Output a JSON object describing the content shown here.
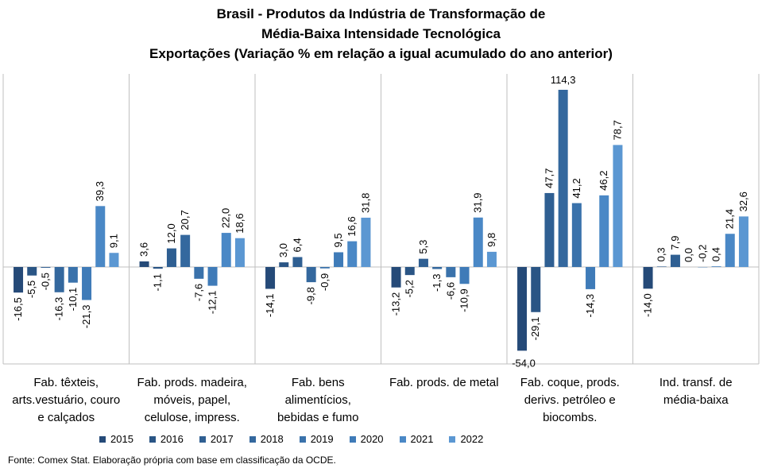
{
  "title_lines": [
    "Brasil - Produtos da Indústria de Transformação de",
    "Média-Baixa Intensidade Tecnológica",
    "Exportações (Variação % em relação a igual acumulado do ano anterior)"
  ],
  "source": "Fonte: Comex Stat. Elaboração própria com base em classificação da OCDE.",
  "chart_data": {
    "type": "bar",
    "title": "Brasil - Produtos da Indústria de Transformação de Média-Baixa Intensidade Tecnológica — Exportações (Variação % em relação a igual acumulado do ano anterior)",
    "categories": [
      [
        "Fab. têxteis,",
        "arts.vestuário, couro",
        "e calçados"
      ],
      [
        "Fab. prods. madeira,",
        "móveis, papel,",
        "celulose, impress."
      ],
      [
        "Fab. bens",
        "alimentícios,",
        "bebidas e fumo"
      ],
      [
        "Fab. prods. de metal"
      ],
      [
        "Fab. coque, prods.",
        "derivs. petróleo e",
        "biocombs."
      ],
      [
        "Ind. transf. de",
        "média-baixa"
      ]
    ],
    "series": [
      {
        "name": "2015",
        "color": "#254a78",
        "values": [
          -16.5,
          3.6,
          -14.1,
          -13.2,
          -54.0,
          -14.0
        ]
      },
      {
        "name": "2016",
        "color": "#2a5585",
        "values": [
          -5.5,
          -1.1,
          3.0,
          -5.2,
          -29.1,
          0.3
        ]
      },
      {
        "name": "2017",
        "color": "#2f5f92",
        "values": [
          -0.5,
          12.0,
          6.4,
          5.3,
          47.7,
          7.9
        ]
      },
      {
        "name": "2018",
        "color": "#34689e",
        "values": [
          -16.3,
          20.7,
          -9.8,
          -1.3,
          114.3,
          0.0
        ]
      },
      {
        "name": "2019",
        "color": "#3a72ab",
        "values": [
          -10.1,
          -7.6,
          -0.9,
          -6.6,
          41.2,
          -0.2
        ]
      },
      {
        "name": "2020",
        "color": "#3f7bb8",
        "values": [
          -21.3,
          -12.1,
          9.5,
          -10.9,
          -14.3,
          0.4
        ]
      },
      {
        "name": "2021",
        "color": "#4a88c6",
        "values": [
          39.3,
          22.0,
          16.6,
          31.9,
          46.2,
          21.4
        ]
      },
      {
        "name": "2022",
        "color": "#5b97d2",
        "values": [
          9.1,
          18.6,
          31.8,
          9.8,
          78.7,
          32.6
        ]
      }
    ],
    "value_labels": [
      [
        "-16,5",
        "-5,5",
        "-0,5",
        "-16,3",
        "-10,1",
        "-21,3",
        "39,3",
        "9,1"
      ],
      [
        "3,6",
        "-1,1",
        "12,0",
        "20,7",
        "-7,6",
        "-12,1",
        "22,0",
        "18,6"
      ],
      [
        "-14,1",
        "3,0",
        "6,4",
        "-9,8",
        "-0,9",
        "9,5",
        "16,6",
        "31,8"
      ],
      [
        "-13,2",
        "-5,2",
        "5,3",
        "-1,3",
        "-6,6",
        "-10,9",
        "31,9",
        "9,8"
      ],
      [
        "-54,0",
        "-29,1",
        "47,7",
        "114,3",
        "41,2",
        "-14,3",
        "46,2",
        "78,7"
      ],
      [
        "-14,0",
        "0,3",
        "7,9",
        "0,0",
        "-0,2",
        "0,4",
        "21,4",
        "32,6"
      ]
    ],
    "ylim": [
      -60,
      125
    ],
    "grid": false,
    "legend_position": "bottom"
  }
}
